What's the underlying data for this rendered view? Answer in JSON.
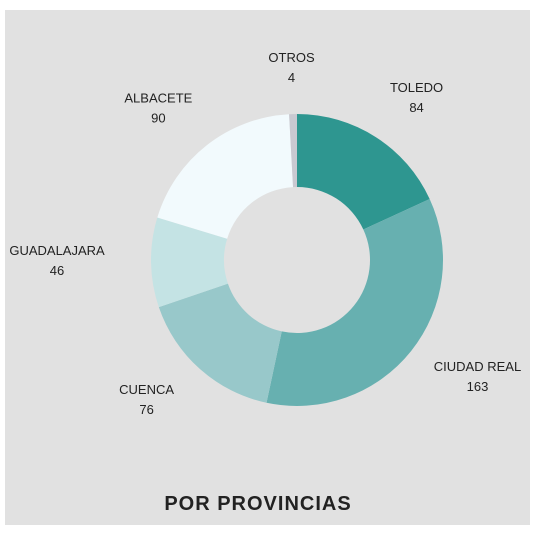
{
  "chart_data": {
    "type": "donut",
    "title": "POR PROVINCIAS",
    "categories": [
      "TOLEDO",
      "CIUDAD REAL",
      "CUENCA",
      "GUADALAJARA",
      "ALBACETE",
      "OTROS"
    ],
    "values": [
      84,
      163,
      76,
      46,
      90,
      4
    ],
    "colors": [
      "#2e9690",
      "#67b0b0",
      "#98c8ca",
      "#c4e3e4",
      "#f2fafd",
      "#c9c9d1"
    ]
  }
}
